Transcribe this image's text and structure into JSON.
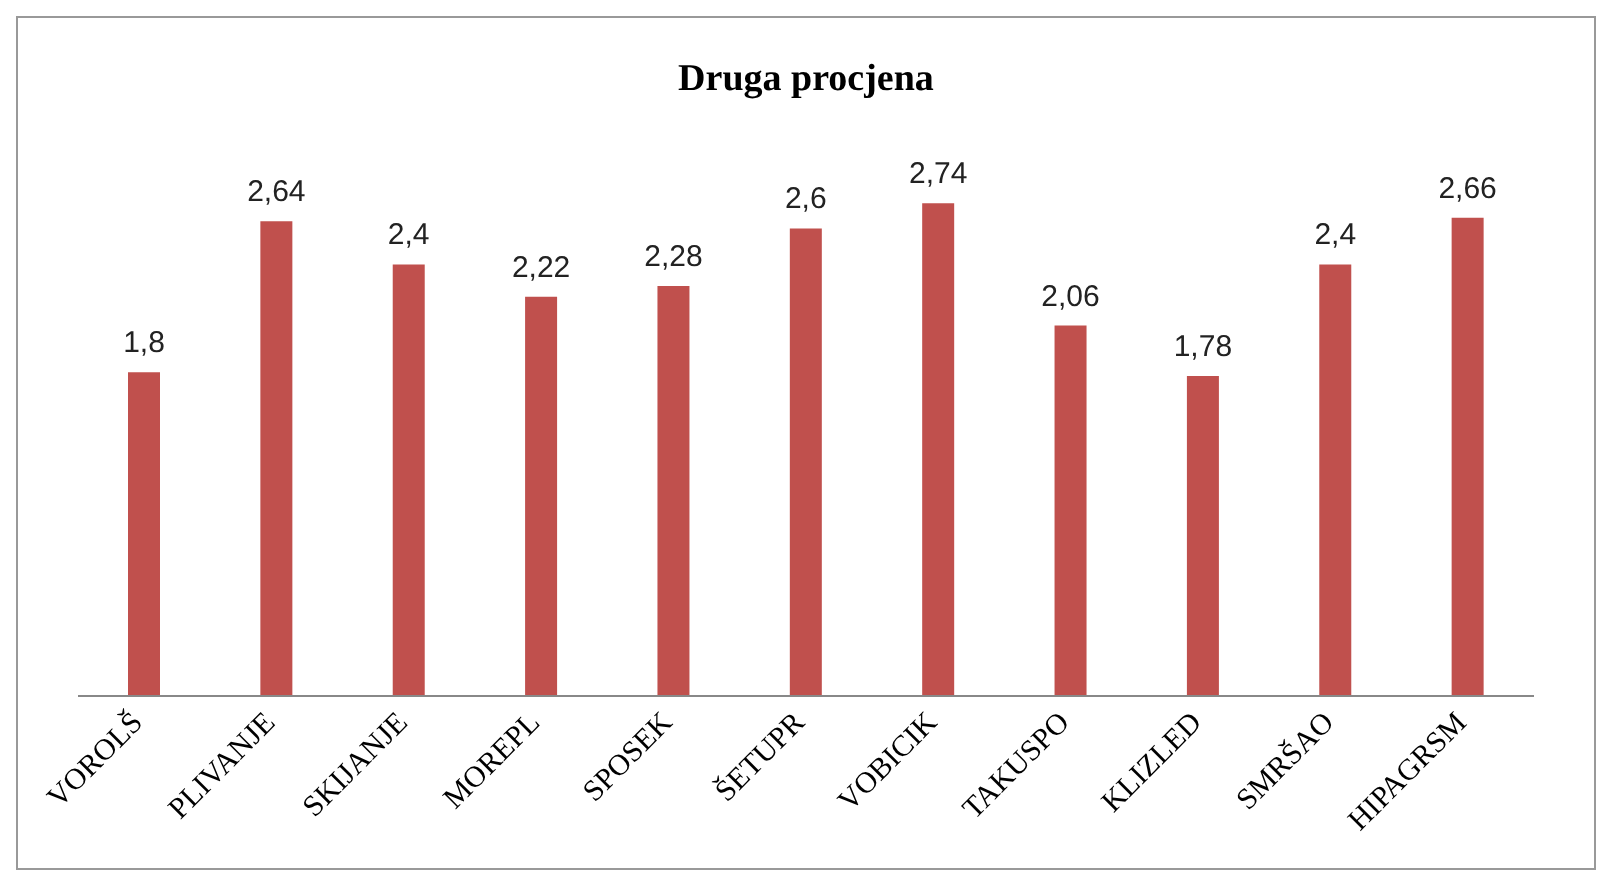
{
  "chart_data": {
    "type": "bar",
    "title": "Druga procjena",
    "categories": [
      "VOROLŠ",
      "PLIVANJE",
      "SKIJANJE",
      "MOREPL",
      "SPOSEK",
      "ŠETUPR",
      "VOBICIK",
      "TAKUSPO",
      "KLIZLED",
      "SMRŠAO",
      "HIPAGRSM"
    ],
    "values": [
      1.8,
      2.64,
      2.4,
      2.22,
      2.28,
      2.6,
      2.74,
      2.06,
      1.78,
      2.4,
      2.66
    ],
    "value_labels": [
      "1,8",
      "2,64",
      "2,4",
      "2,22",
      "2,28",
      "2,6",
      "2,74",
      "2,06",
      "1,78",
      "2,4",
      "2,66"
    ],
    "color": "#c0504d",
    "grid": false,
    "legend": false
  }
}
